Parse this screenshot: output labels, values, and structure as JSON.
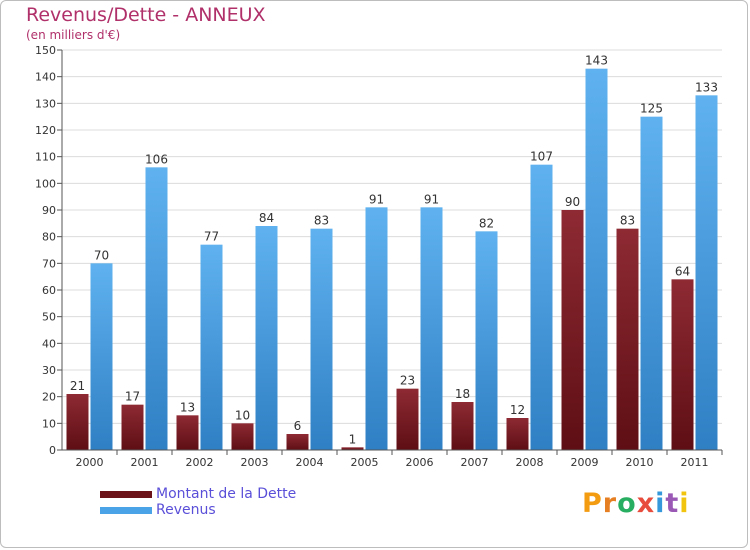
{
  "title": "Revenus/Dette - ANNEUX",
  "subtitle": "(en milliers d'€)",
  "colors": {
    "dette": "#7b1c24",
    "revenus": "#4aa3e6",
    "title": "#b0306a",
    "legend_text": "#5a4fd8"
  },
  "logo": {
    "text": "Proxiti",
    "letter_colors": [
      "#f39c12",
      "#e67e22",
      "#27ae60",
      "#e74c3c",
      "#3498db",
      "#9b59b6",
      "#f1c40f"
    ]
  },
  "chart_data": {
    "type": "bar",
    "title": "Revenus/Dette - ANNEUX",
    "subtitle": "(en milliers d'€)",
    "categories": [
      "2000",
      "2001",
      "2002",
      "2003",
      "2004",
      "2005",
      "2006",
      "2007",
      "2008",
      "2009",
      "2010",
      "2011"
    ],
    "series": [
      {
        "name": "Montant de la Dette",
        "values": [
          21,
          17,
          13,
          10,
          6,
          1,
          23,
          18,
          12,
          90,
          83,
          64
        ]
      },
      {
        "name": "Revenus",
        "values": [
          70,
          106,
          77,
          84,
          83,
          91,
          91,
          82,
          107,
          143,
          125,
          133
        ]
      }
    ],
    "ylim": [
      0,
      150
    ],
    "yticks": [
      0,
      10,
      20,
      30,
      40,
      50,
      60,
      70,
      80,
      90,
      100,
      110,
      120,
      130,
      140,
      150
    ],
    "grid": true,
    "legend": "bottom-left"
  }
}
